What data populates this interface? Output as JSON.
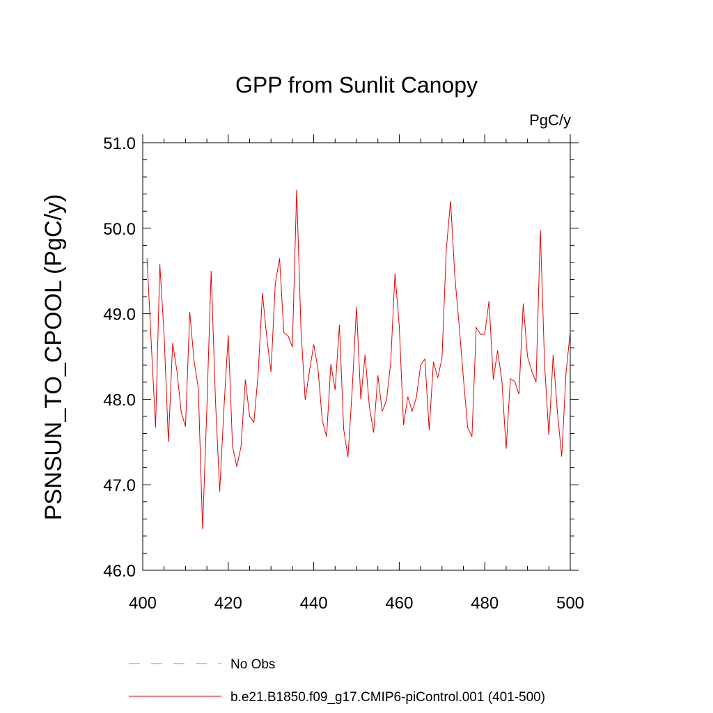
{
  "chart_data": {
    "type": "line",
    "title": "GPP from Sunlit Canopy",
    "units_label": "PgC/y",
    "xlabel": "",
    "ylabel": "PSNSUN_TO_CPOOL  (PgC/y)",
    "xlim": [
      400,
      500
    ],
    "ylim": [
      46.0,
      51.0
    ],
    "x_ticks": [
      400,
      420,
      440,
      460,
      480,
      500
    ],
    "x_tick_labels": [
      "400",
      "420",
      "440",
      "460",
      "480",
      "500"
    ],
    "y_ticks": [
      46.0,
      47.0,
      48.0,
      49.0,
      50.0,
      51.0
    ],
    "y_tick_labels": [
      "46.0",
      "47.0",
      "48.0",
      "49.0",
      "50.0",
      "51.0"
    ],
    "grid": false,
    "legend_placement": "bottom",
    "series": [
      {
        "name": "b.e21.B1850.f09_g17.CMIP6-piControl.001 (401-500)",
        "color": "#e60000",
        "style": "solid",
        "x": [
          401,
          402,
          403,
          404,
          405,
          406,
          407,
          408,
          409,
          410,
          411,
          412,
          413,
          414,
          415,
          416,
          417,
          418,
          419,
          420,
          421,
          422,
          423,
          424,
          425,
          426,
          427,
          428,
          429,
          430,
          431,
          432,
          433,
          434,
          435,
          436,
          437,
          438,
          439,
          440,
          441,
          442,
          443,
          444,
          445,
          446,
          447,
          448,
          449,
          450,
          451,
          452,
          453,
          454,
          455,
          456,
          457,
          458,
          459,
          460,
          461,
          462,
          463,
          464,
          465,
          466,
          467,
          468,
          469,
          470,
          471,
          472,
          473,
          474,
          475,
          476,
          477,
          478,
          479,
          480,
          481,
          482,
          483,
          484,
          485,
          486,
          487,
          488,
          489,
          490,
          491,
          492,
          493,
          494,
          495,
          496,
          497,
          498,
          499,
          500
        ],
        "values": [
          49.65,
          48.65,
          47.67,
          49.58,
          48.75,
          47.5,
          48.66,
          48.33,
          47.85,
          47.68,
          49.02,
          48.45,
          48.13,
          46.48,
          47.9,
          49.5,
          48.0,
          46.92,
          47.9,
          48.75,
          47.45,
          47.21,
          47.45,
          48.23,
          47.8,
          47.73,
          48.3,
          49.24,
          48.73,
          48.32,
          49.35,
          49.65,
          48.78,
          48.74,
          48.61,
          50.45,
          48.83,
          47.99,
          48.33,
          48.64,
          48.35,
          47.75,
          47.56,
          48.41,
          48.11,
          48.87,
          47.65,
          47.32,
          48.12,
          49.08,
          48.0,
          48.52,
          47.92,
          47.61,
          48.28,
          47.86,
          47.98,
          48.43,
          49.47,
          48.86,
          47.7,
          48.03,
          47.86,
          48.02,
          48.4,
          48.47,
          47.64,
          48.44,
          48.25,
          48.48,
          49.75,
          50.32,
          49.44,
          48.87,
          48.25,
          47.67,
          47.56,
          48.84,
          48.76,
          48.76,
          49.15,
          48.23,
          48.57,
          48.22,
          47.42,
          48.24,
          48.21,
          48.06,
          49.12,
          48.5,
          48.33,
          48.2,
          49.98,
          48.4,
          47.58,
          48.52,
          47.85,
          47.33,
          48.3,
          48.8
        ]
      },
      {
        "name": "No Obs",
        "color": "#8a8ad6",
        "style": "dashed",
        "x": [],
        "values": []
      }
    ]
  }
}
